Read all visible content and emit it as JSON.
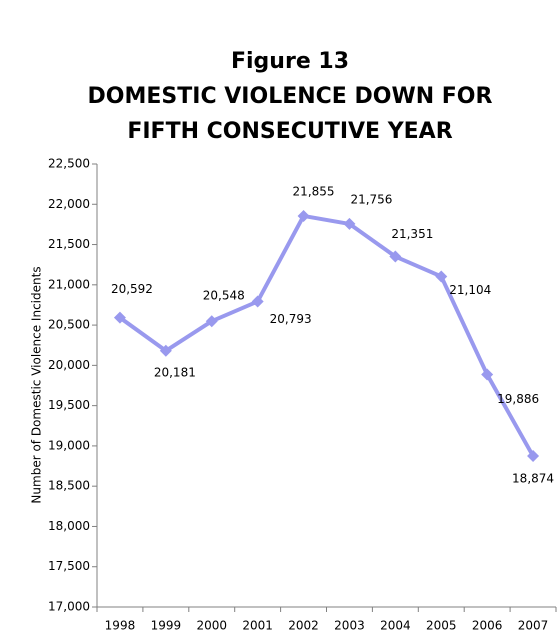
{
  "chart_data": {
    "type": "line",
    "title": "Figure 13",
    "subtitle": [
      "DOMESTIC VIOLENCE DOWN FOR",
      "FIFTH CONSECUTIVE YEAR"
    ],
    "y_label": "Number of Domestic Violence Incidents",
    "categories": [
      "1998",
      "1999",
      "2000",
      "2001",
      "2002",
      "2003",
      "2004",
      "2005",
      "2006",
      "2007"
    ],
    "series": [
      {
        "name": "Domestic Violence Incidents",
        "color": "#9999ee",
        "values": [
          20592,
          20181,
          20548,
          20793,
          21855,
          21756,
          21351,
          21104,
          19886,
          18874
        ],
        "value_labels": [
          "20,592",
          "20,181",
          "20,548",
          "20,793",
          "21,855",
          "21,756",
          "21,351",
          "21,104",
          "19,886",
          "18,874"
        ]
      }
    ],
    "ylim": [
      17000,
      22500
    ],
    "yticks": [
      {
        "value": 17000,
        "label": "17,000"
      },
      {
        "value": 17500,
        "label": "17,500"
      },
      {
        "value": 18000,
        "label": "18,000"
      },
      {
        "value": 18500,
        "label": "18,500"
      },
      {
        "value": 19000,
        "label": "19,000"
      },
      {
        "value": 19500,
        "label": "19,500"
      },
      {
        "value": 20000,
        "label": "20,000"
      },
      {
        "value": 20500,
        "label": "20,500"
      },
      {
        "value": 21000,
        "label": "21,000"
      },
      {
        "value": 21500,
        "label": "21,500"
      },
      {
        "value": 22000,
        "label": "22,000"
      },
      {
        "value": 22500,
        "label": "22,500"
      }
    ],
    "grid": false
  }
}
